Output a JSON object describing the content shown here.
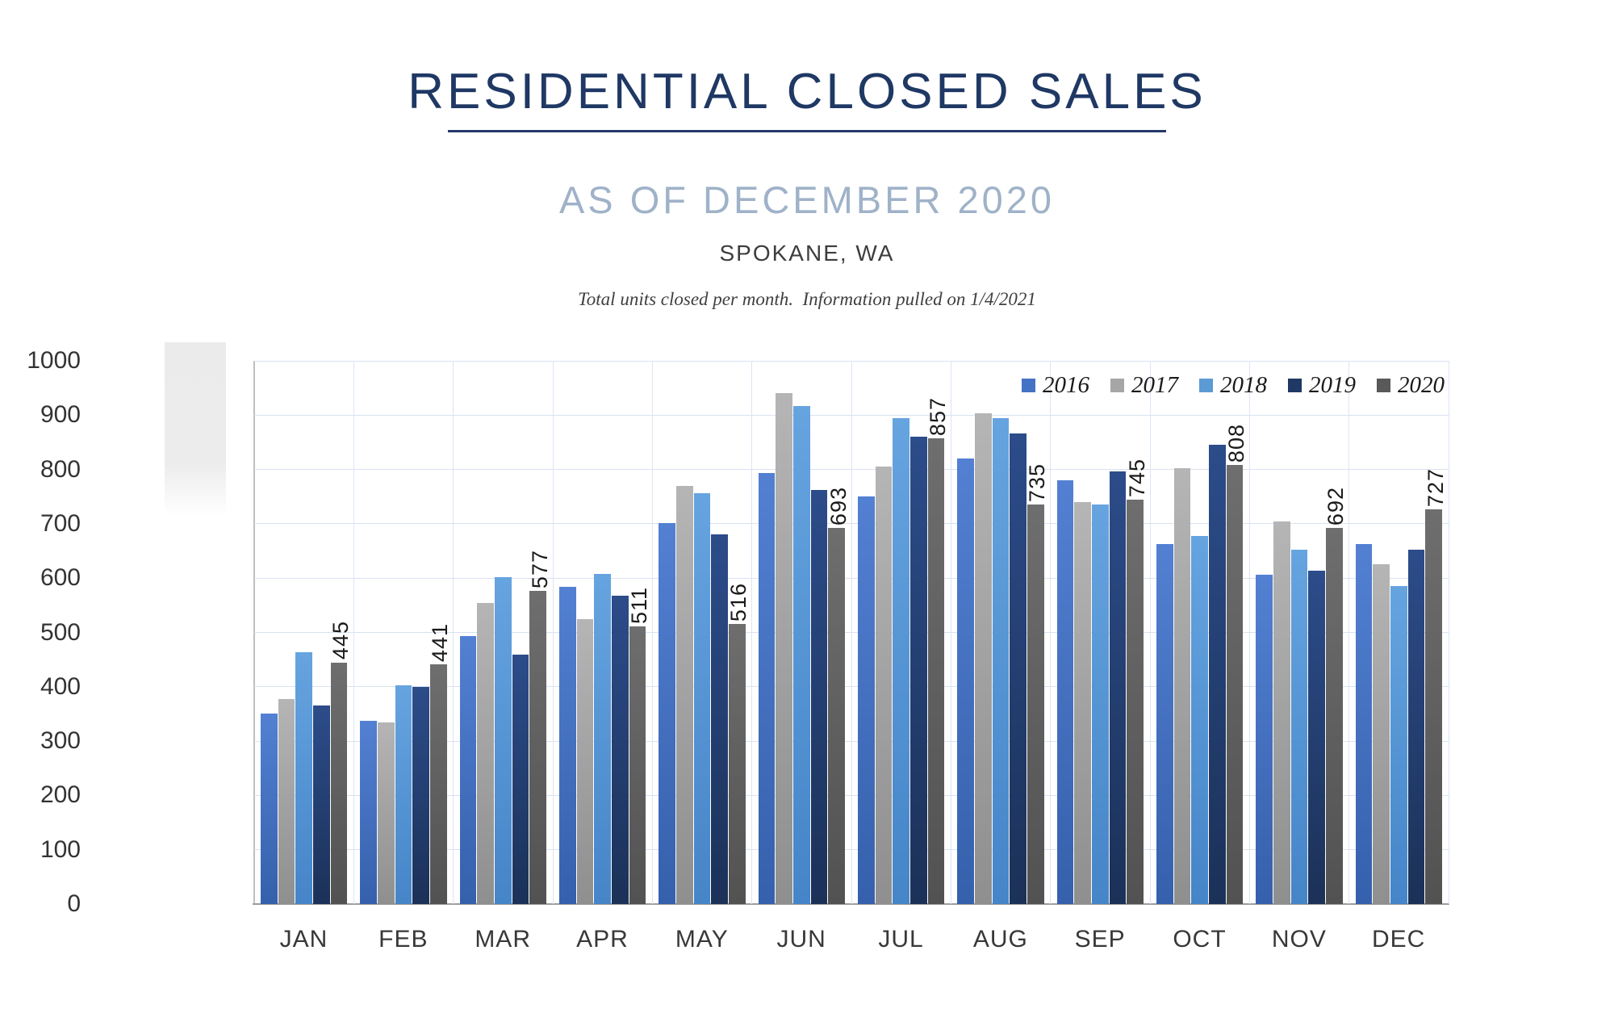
{
  "header": {
    "title": "RESIDENTIAL CLOSED SALES",
    "subtitle": "AS OF DECEMBER 2020",
    "location": "SPOKANE, WA",
    "note": "Total units closed per month.  Information pulled on 1/4/2021"
  },
  "chart_data": {
    "type": "bar",
    "title": "RESIDENTIAL CLOSED SALES",
    "subtitle": "AS OF DECEMBER 2020",
    "categories": [
      "JAN",
      "FEB",
      "MAR",
      "APR",
      "MAY",
      "JUN",
      "JUL",
      "AUG",
      "SEP",
      "OCT",
      "NOV",
      "DEC"
    ],
    "series": [
      {
        "name": "2016",
        "color": "#4472C4",
        "gradient": [
          "#5380D2",
          "#3560AC"
        ],
        "values": [
          351,
          338,
          494,
          584,
          701,
          793,
          751,
          820,
          780,
          663,
          607,
          663
        ]
      },
      {
        "name": "2017",
        "color": "#A6A6A6",
        "gradient": [
          "#B5B5B5",
          "#8F8F8F"
        ],
        "values": [
          377,
          334,
          554,
          524,
          770,
          941,
          805,
          903,
          740,
          803,
          704,
          626
        ]
      },
      {
        "name": "2018",
        "color": "#5B9BD5",
        "gradient": [
          "#66A4E0",
          "#4585C8"
        ],
        "values": [
          463,
          402,
          602,
          608,
          757,
          917,
          895,
          895,
          735,
          678,
          653,
          586
        ]
      },
      {
        "name": "2019",
        "color": "#1F3864",
        "gradient": [
          "#2C4C8A",
          "#1B3158"
        ],
        "values": [
          365,
          400,
          459,
          567,
          681,
          763,
          861,
          867,
          797,
          845,
          613,
          652
        ]
      },
      {
        "name": "2020",
        "color": "#595959",
        "gradient": [
          "#6E6E6E",
          "#525252"
        ],
        "values": [
          445,
          441,
          577,
          511,
          516,
          693,
          857,
          735,
          745,
          808,
          692,
          727
        ]
      }
    ],
    "data_labels": {
      "series": "2020",
      "values": [
        445,
        441,
        577,
        511,
        516,
        693,
        857,
        735,
        745,
        808,
        692,
        727
      ]
    },
    "ylim": [
      0,
      1000
    ],
    "ytick_step": 100,
    "yticks": [
      0,
      100,
      200,
      300,
      400,
      500,
      600,
      700,
      800,
      900,
      1000
    ],
    "xlabel": "",
    "ylabel": "",
    "grid": true,
    "legend_position": "top-right",
    "legend_entries": [
      "2016",
      "2017",
      "2018",
      "2019",
      "2020"
    ]
  },
  "colors": {
    "title": "#1F3864",
    "subtitle": "#9FB2C8",
    "gridline": "#D9E1F2",
    "axis_line": "#BFBFBF",
    "baseline": "#9E9E9E",
    "tick_label": "#333333",
    "data_label": "#1A1A1A"
  }
}
